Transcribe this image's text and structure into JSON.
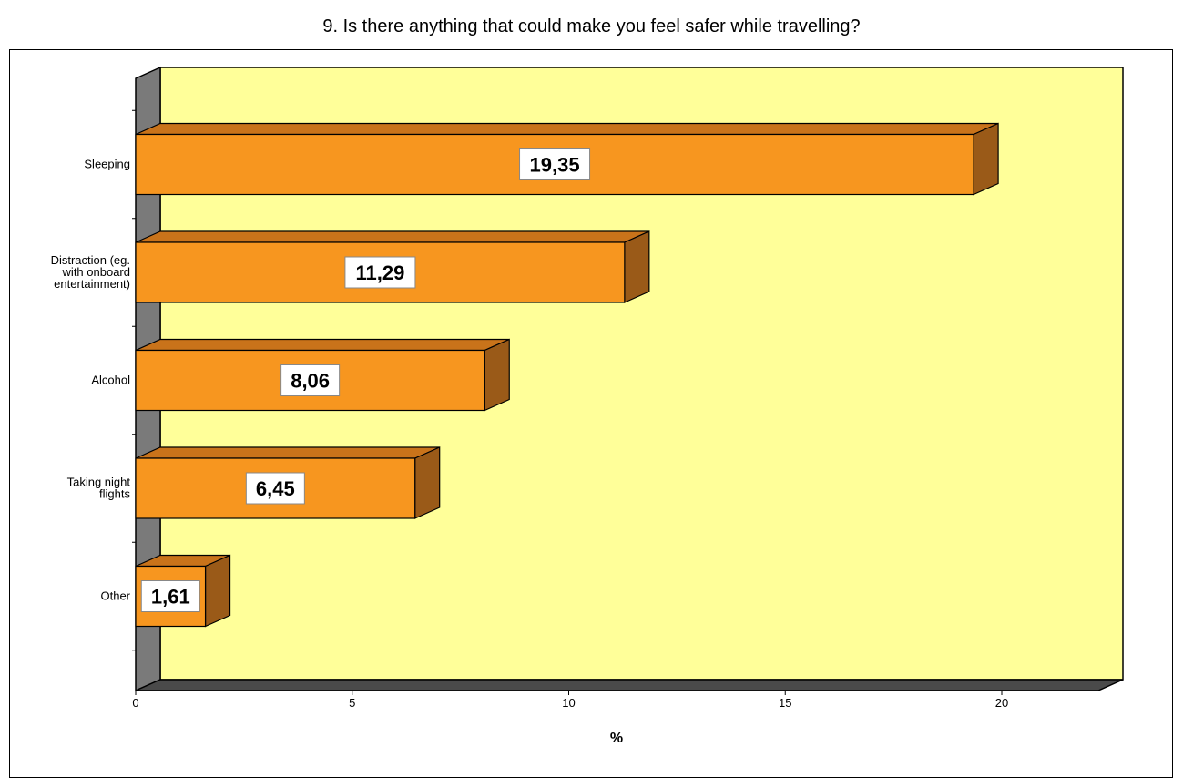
{
  "chart_data": {
    "type": "bar",
    "orientation": "horizontal",
    "title": "9. Is there anything that could make you feel safer while travelling?",
    "categories": [
      "Sleeping",
      "Distraction (eg. with onboard entertainment)",
      "Alcohol",
      "Taking night flights",
      "Other"
    ],
    "category_lines": [
      [
        "Sleeping"
      ],
      [
        "Distraction (eg.",
        "with onboard",
        "entertainment)"
      ],
      [
        "Alcohol"
      ],
      [
        "Taking night",
        "flights"
      ],
      [
        "Other"
      ]
    ],
    "values": [
      19.35,
      11.29,
      8.06,
      6.45,
      1.61
    ],
    "value_labels": [
      "19,35",
      "11,29",
      "8,06",
      "6,45",
      "1,61"
    ],
    "xlabel": "%",
    "ylabel": "",
    "xlim": [
      0,
      22
    ],
    "xticks": [
      0,
      5,
      10,
      15,
      20
    ],
    "grid": false,
    "legend": "none",
    "colors": {
      "bar_front": "#f7961f",
      "bar_top": "#c9731a",
      "bar_side": "#9a5a18",
      "plot_back": "#ffff99",
      "plot_wall": "#7a7a7a",
      "plot_floor": "#4a4a4a"
    }
  }
}
